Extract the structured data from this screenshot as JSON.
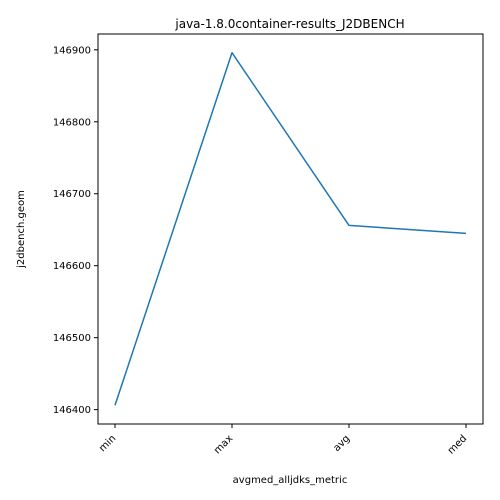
{
  "chart_data": {
    "type": "line",
    "title": "java-1.8.0container-results_J2DBENCH",
    "xlabel": "avgmed_alljdks_metric",
    "ylabel": "j2dbench.geom",
    "categories": [
      "min",
      "max",
      "avg",
      "med"
    ],
    "series": [
      {
        "values": [
          146406,
          146896,
          146656,
          146645
        ],
        "color": "#1f77b4"
      }
    ],
    "ylim": [
      146380,
      146922
    ],
    "yticks": [
      146400,
      146500,
      146600,
      146700,
      146800,
      146900
    ],
    "xtick_rotation": 45,
    "grid": false,
    "legend": "none"
  }
}
